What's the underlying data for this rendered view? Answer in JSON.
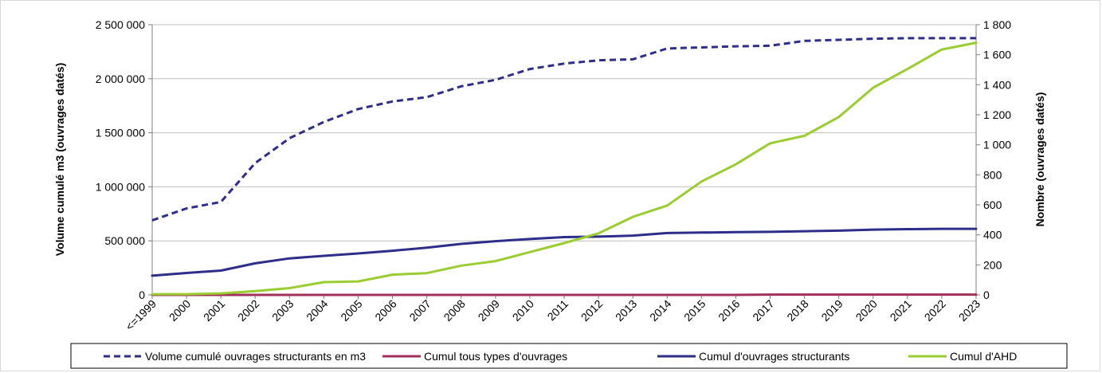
{
  "chart_data": {
    "type": "line",
    "categories": [
      "<=1999",
      "2000",
      "2001",
      "2002",
      "2003",
      "2004",
      "2005",
      "2006",
      "2007",
      "2008",
      "2009",
      "2010",
      "2011",
      "2012",
      "2013",
      "2014",
      "2015",
      "2016",
      "2017",
      "2018",
      "2019",
      "2020",
      "2021",
      "2022",
      "2023"
    ],
    "ylabel_left": "Volume cumulé m3 (ouvrages datés)",
    "ylabel_right": "Nombre (ouvrages datés)",
    "ylim_left": [
      0,
      2500000
    ],
    "ylim_right": [
      0,
      1800
    ],
    "yticks_left": [
      "0",
      "500 000",
      "1 000 000",
      "1 500 000",
      "2 000 000",
      "2 500 000"
    ],
    "yticks_right": [
      "0",
      "200",
      "400",
      "600",
      "800",
      "1 000",
      "1 200",
      "1 400",
      "1 600",
      "1 800"
    ],
    "grid": true,
    "legend_position": "bottom",
    "series": [
      {
        "name": "Volume cumulé ouvrages structurants en m3",
        "axis": "left",
        "style": "dashed",
        "color": "#2e2e8a",
        "values": [
          690000,
          800000,
          860000,
          1220000,
          1450000,
          1600000,
          1720000,
          1790000,
          1830000,
          1930000,
          1990000,
          2090000,
          2140000,
          2170000,
          2180000,
          2280000,
          2290000,
          2300000,
          2305000,
          2350000,
          2360000,
          2370000,
          2375000,
          2375000,
          2375000
        ]
      },
      {
        "name": "Cumul tous types d'ouvrages",
        "axis": "right",
        "style": "solid",
        "color": "#a0305a",
        "values": [
          0,
          0,
          0,
          0,
          0,
          0,
          0,
          0,
          0,
          0,
          0,
          0,
          0,
          0,
          0,
          0,
          0,
          0,
          2,
          2,
          2,
          2,
          2,
          2,
          2
        ]
      },
      {
        "name": "Cumul d'ouvrages structurants",
        "axis": "right",
        "style": "solid",
        "color": "#2e2e8a",
        "values": [
          128,
          146,
          162,
          210,
          243,
          260,
          276,
          294,
          315,
          340,
          358,
          372,
          385,
          388,
          395,
          412,
          415,
          418,
          420,
          424,
          428,
          435,
          438,
          440,
          440
        ]
      },
      {
        "name": "Cumul d'AHD",
        "axis": "right",
        "style": "solid",
        "color": "#9acd32",
        "values": [
          5,
          5,
          10,
          25,
          45,
          85,
          90,
          135,
          145,
          195,
          225,
          285,
          345,
          410,
          520,
          595,
          755,
          870,
          1010,
          1060,
          1185,
          1380,
          1505,
          1635,
          1680
        ]
      }
    ]
  }
}
